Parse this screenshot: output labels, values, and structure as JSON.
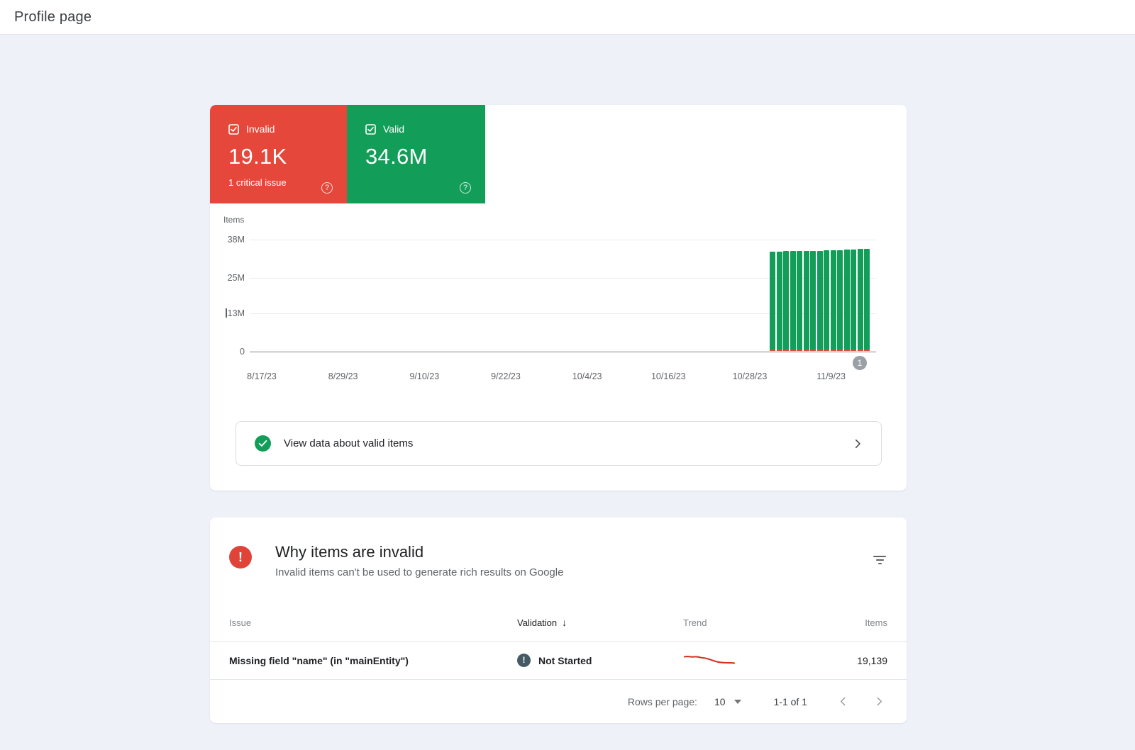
{
  "header": {
    "title": "Profile page"
  },
  "colors": {
    "invalid": "#e5483b",
    "valid": "#129e58",
    "trend": "#d93025",
    "badge": "#9aa0a6",
    "error_icon": "#e04438"
  },
  "summary": {
    "invalid": {
      "label": "Invalid",
      "value": "19.1K",
      "sub": "1 critical issue"
    },
    "valid": {
      "label": "Valid",
      "value": "34.6M"
    }
  },
  "chart_data": {
    "type": "bar",
    "title": "",
    "xlabel": "",
    "ylabel": "Items",
    "ylim": [
      0,
      38000000
    ],
    "grid": "horizontal",
    "y_ticks": [
      {
        "label": "38M",
        "value": 38
      },
      {
        "label": "25M",
        "value": 25
      },
      {
        "label": "13M",
        "value": 13,
        "cursor": true
      },
      {
        "label": "0",
        "value": 0
      }
    ],
    "x_ticks": [
      "8/17/23",
      "8/29/23",
      "9/10/23",
      "9/22/23",
      "10/4/23",
      "10/16/23",
      "10/28/23",
      "11/9/23"
    ],
    "series": [
      {
        "name": "Valid",
        "unit": "millions",
        "values": [
          33.8,
          33.8,
          33.85,
          33.85,
          33.9,
          33.9,
          33.95,
          34.0,
          34.05,
          34.1,
          34.2,
          34.35,
          34.5,
          34.55,
          34.6
        ]
      },
      {
        "name": "Invalid",
        "unit": "millions",
        "values": [
          0.019,
          0.019,
          0.019,
          0.019,
          0.019,
          0.019,
          0.019,
          0.019,
          0.019,
          0.019,
          0.019,
          0.019,
          0.019,
          0.019,
          0.019
        ]
      }
    ],
    "annotation_badge": "1"
  },
  "valid_link": {
    "label": "View data about valid items"
  },
  "issues": {
    "title": "Why items are invalid",
    "subtitle": "Invalid items can't be used to generate rich results on Google",
    "table": {
      "headers": {
        "issue": "Issue",
        "validation": "Validation",
        "trend": "Trend",
        "items": "Items"
      },
      "sort": {
        "column": "Validation",
        "direction": "desc",
        "arrow": "↓"
      },
      "rows": [
        {
          "issue": "Missing field \"name\" (in \"mainEntity\")",
          "validation": "Not Started",
          "items": "19,139"
        }
      ]
    },
    "pagination": {
      "label": "Rows per page:",
      "value": "10",
      "range": "1-1 of 1"
    }
  }
}
